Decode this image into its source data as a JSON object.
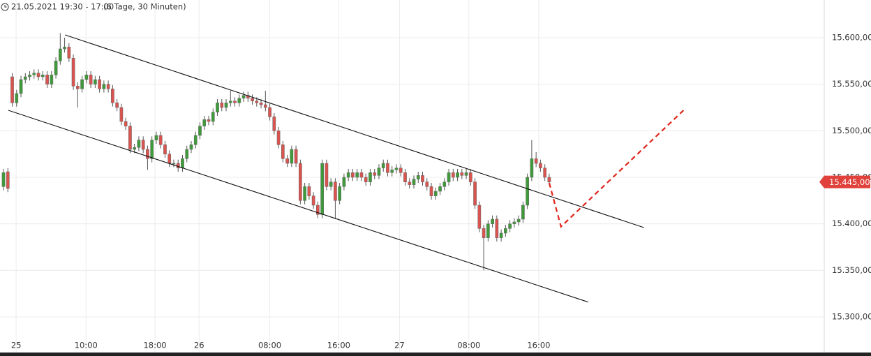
{
  "chart_data": {
    "type": "candlestick",
    "header": {
      "range": "21.05.2021 19:30 - 17:00",
      "span": "(6 Tage, 30 Minuten)"
    },
    "up_color": "#3f9a3a",
    "down_color": "#d9534f",
    "open": [
      15440,
      15456,
      15558,
      15530,
      15540,
      15555,
      15558,
      15560,
      15562,
      15558,
      15560,
      15550,
      15560,
      15575,
      15588,
      15590,
      15578,
      15548,
      15545,
      15555,
      15560,
      15550,
      15555,
      15545,
      15550,
      15545,
      15530,
      15525,
      15510,
      15505,
      15480,
      15482,
      15490,
      15480,
      15470,
      15490,
      15495,
      15485,
      15475,
      15465,
      15465,
      15460,
      15470,
      15480,
      15485,
      15495,
      15505,
      15512,
      15510,
      15520,
      15530,
      15525,
      15530,
      15532,
      15530,
      15535,
      15538,
      15535,
      15532,
      15530,
      15528,
      15525,
      15515,
      15500,
      15485,
      15470,
      15465,
      15480,
      15465,
      15425,
      15440,
      15430,
      15420,
      15410,
      15465,
      15440,
      15445,
      15425,
      15440,
      15450,
      15455,
      15450,
      15455,
      15450,
      15445,
      15455,
      15452,
      15460,
      15465,
      15455,
      15458,
      15460,
      15455,
      15445,
      15442,
      15448,
      15452,
      15445,
      15440,
      15430,
      15435,
      15440,
      15445,
      15455,
      15450,
      15455,
      15452,
      15455,
      15445,
      15420,
      15395,
      15385,
      15400,
      15405,
      15385,
      15390,
      15395,
      15400,
      15402,
      15405,
      15420,
      15450,
      15470,
      15465,
      15460,
      15450
    ],
    "high": [
      15459,
      15460,
      15562,
      15544,
      15559,
      15562,
      15564,
      15566,
      15566,
      15564,
      15564,
      15564,
      15579,
      15605,
      15600,
      15594,
      15582,
      15552,
      15559,
      15564,
      15564,
      15559,
      15559,
      15554,
      15554,
      15549,
      15534,
      15529,
      15514,
      15509,
      15486,
      15494,
      15494,
      15484,
      15494,
      15499,
      15499,
      15489,
      15479,
      15469,
      15469,
      15474,
      15484,
      15489,
      15499,
      15509,
      15516,
      15516,
      15524,
      15534,
      15534,
      15534,
      15543,
      15536,
      15539,
      15542,
      15542,
      15539,
      15536,
      15534,
      15543,
      15529,
      15519,
      15504,
      15489,
      15474,
      15484,
      15484,
      15469,
      15444,
      15444,
      15434,
      15424,
      15469,
      15469,
      15449,
      15449,
      15444,
      15454,
      15459,
      15459,
      15459,
      15459,
      15454,
      15459,
      15459,
      15464,
      15469,
      15469,
      15462,
      15464,
      15464,
      15459,
      15449,
      15452,
      15456,
      15456,
      15449,
      15444,
      15439,
      15444,
      15449,
      15459,
      15459,
      15459,
      15459,
      15459,
      15459,
      15449,
      15424,
      15399,
      15404,
      15409,
      15409,
      15394,
      15399,
      15404,
      15406,
      15409,
      15424,
      15454,
      15490,
      15477,
      15469,
      15464,
      15454
    ],
    "low": [
      15436,
      15434,
      15526,
      15526,
      15536,
      15551,
      15554,
      15556,
      15554,
      15554,
      15546,
      15546,
      15556,
      15571,
      15584,
      15574,
      15544,
      15525,
      15541,
      15551,
      15546,
      15546,
      15541,
      15541,
      15541,
      15526,
      15521,
      15506,
      15501,
      15476,
      15476,
      15478,
      15476,
      15458,
      15466,
      15486,
      15481,
      15471,
      15461,
      15461,
      15456,
      15456,
      15466,
      15476,
      15481,
      15491,
      15501,
      15506,
      15506,
      15516,
      15521,
      15521,
      15526,
      15526,
      15526,
      15531,
      15531,
      15528,
      15526,
      15524,
      15521,
      15511,
      15496,
      15481,
      15466,
      15461,
      15461,
      15461,
      15421,
      15421,
      15426,
      15416,
      15406,
      15406,
      15436,
      15436,
      15405,
      15421,
      15436,
      15446,
      15446,
      15446,
      15446,
      15441,
      15441,
      15448,
      15448,
      15456,
      15451,
      15451,
      15454,
      15451,
      15441,
      15438,
      15438,
      15444,
      15441,
      15436,
      15426,
      15426,
      15431,
      15436,
      15441,
      15446,
      15446,
      15448,
      15448,
      15441,
      15416,
      15391,
      15350,
      15381,
      15396,
      15381,
      15381,
      15386,
      15391,
      15396,
      15398,
      15401,
      15416,
      15446,
      15461,
      15456,
      15446,
      15441
    ],
    "close": [
      15455,
      15438,
      15530,
      15540,
      15555,
      15558,
      15560,
      15562,
      15558,
      15560,
      15550,
      15560,
      15575,
      15588,
      15590,
      15578,
      15548,
      15545,
      15555,
      15560,
      15550,
      15555,
      15545,
      15550,
      15545,
      15530,
      15525,
      15510,
      15505,
      15480,
      15482,
      15490,
      15480,
      15470,
      15490,
      15495,
      15485,
      15475,
      15465,
      15465,
      15460,
      15470,
      15480,
      15485,
      15495,
      15505,
      15512,
      15510,
      15520,
      15530,
      15525,
      15530,
      15532,
      15530,
      15535,
      15538,
      15535,
      15532,
      15530,
      15528,
      15525,
      15515,
      15500,
      15485,
      15470,
      15465,
      15480,
      15465,
      15425,
      15440,
      15430,
      15420,
      15410,
      15465,
      15440,
      15445,
      15425,
      15440,
      15450,
      15455,
      15450,
      15455,
      15450,
      15445,
      15455,
      15452,
      15460,
      15465,
      15455,
      15458,
      15460,
      15455,
      15445,
      15442,
      15448,
      15452,
      15445,
      15440,
      15430,
      15435,
      15440,
      15445,
      15455,
      15450,
      15455,
      15452,
      15455,
      15445,
      15420,
      15395,
      15385,
      15400,
      15405,
      15385,
      15390,
      15395,
      15400,
      15402,
      15405,
      15420,
      15450,
      15470,
      15465,
      15460,
      15450,
      15445
    ],
    "xlim": [
      -0.8,
      188
    ],
    "xticks": [
      {
        "value": 2.9,
        "label": "25"
      },
      {
        "value": 18.9,
        "label": "10:00"
      },
      {
        "value": 34.7,
        "label": "18:00"
      },
      {
        "value": 44.8,
        "label": "26"
      },
      {
        "value": 61,
        "label": "08:00"
      },
      {
        "value": 76.8,
        "label": "16:00"
      },
      {
        "value": 90.7,
        "label": "27"
      },
      {
        "value": 106.6,
        "label": "08:00"
      },
      {
        "value": 122.6,
        "label": "16:00"
      }
    ],
    "ylim": [
      15279,
      15640.5
    ],
    "yticks": [
      {
        "value": 15300,
        "label": "15.300,00"
      },
      {
        "value": 15350,
        "label": "15.350,00"
      },
      {
        "value": 15400,
        "label": "15.400,00"
      },
      {
        "value": 15450,
        "label": "15.450,00"
      },
      {
        "value": 15500,
        "label": "15.500,00"
      },
      {
        "value": 15550,
        "label": "15.550,00"
      },
      {
        "value": 15600,
        "label": "15.600,00"
      }
    ],
    "grid": true,
    "last_price": {
      "value": 15445,
      "label": "15.445,00",
      "color": "#e0413b"
    },
    "lines": [
      {
        "x": [
          14.1,
          146.7
        ],
        "y": [
          15603,
          15396
        ],
        "color": "#111111",
        "dashed": false
      },
      {
        "x": [
          1.1,
          133.9
        ],
        "y": [
          15522,
          15316
        ],
        "color": "#111111",
        "dashed": false
      },
      {
        "x": [
          125,
          127.7,
          156
        ],
        "y": [
          15444,
          15397,
          15523
        ],
        "color": "#e0241b",
        "dashed": true
      }
    ]
  }
}
